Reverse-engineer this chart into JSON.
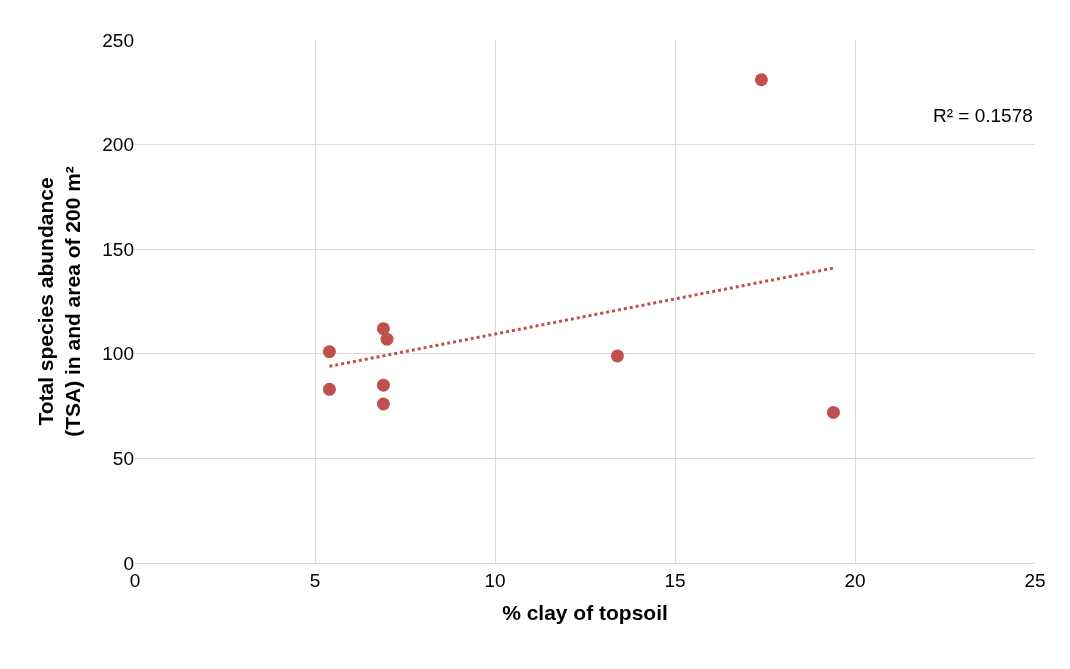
{
  "chart_data": {
    "type": "scatter",
    "xlabel": "% clay of topsoil",
    "ylabel": "Total species abundance (TSA) in and area of 200 m²",
    "xlim": [
      0,
      25
    ],
    "xticks": [
      0,
      5,
      10,
      15,
      20,
      25
    ],
    "ylim": [
      0,
      250
    ],
    "yticks": [
      0,
      50,
      100,
      150,
      200,
      250
    ],
    "grid": true,
    "series": [
      {
        "marker": "circle",
        "color": "#c0504d",
        "x": [
          5.4,
          5.4,
          6.9,
          7.0,
          6.9,
          6.9,
          13.4,
          17.4,
          19.4
        ],
        "values": [
          101,
          83,
          112,
          107,
          85,
          76,
          99,
          231,
          72
        ]
      },
      {
        "type": "line",
        "color": "#c0504d",
        "line_style": "dotted",
        "x": [
          5.4,
          19.4
        ],
        "values": [
          94,
          141
        ]
      }
    ],
    "annotations": [
      "R² = 0.1578"
    ]
  }
}
